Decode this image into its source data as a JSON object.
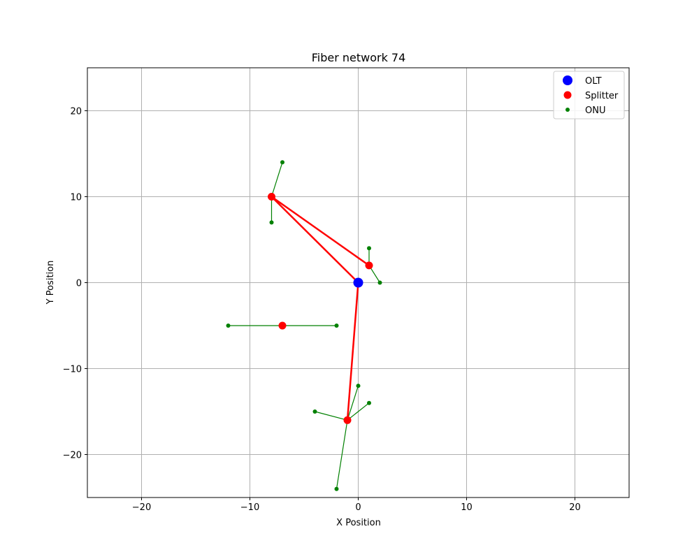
{
  "chart_data": {
    "type": "scatter",
    "title": "Fiber network 74",
    "xlabel": "X Position",
    "ylabel": "Y Position",
    "xlim": [
      -25,
      25
    ],
    "ylim": [
      -25,
      25
    ],
    "xticks": [
      -20,
      -10,
      0,
      10,
      20
    ],
    "yticks": [
      -20,
      -10,
      0,
      10,
      20
    ],
    "grid": true,
    "legend_position": "top-right",
    "series": [
      {
        "name": "OLT",
        "color": "#0000ff",
        "points": [
          [
            0,
            0
          ]
        ]
      },
      {
        "name": "Splitter",
        "color": "#ff0000",
        "points": [
          [
            -8,
            10
          ],
          [
            1,
            2
          ],
          [
            -7,
            -5
          ],
          [
            -1,
            -16
          ]
        ]
      },
      {
        "name": "ONU",
        "color": "#008000",
        "points": [
          [
            -7,
            14
          ],
          [
            -8,
            7
          ],
          [
            1,
            4
          ],
          [
            2,
            0
          ],
          [
            -12,
            -5
          ],
          [
            -2,
            -5
          ],
          [
            0,
            -12
          ],
          [
            1,
            -14
          ],
          [
            -4,
            -15
          ],
          [
            -2,
            -24
          ]
        ]
      }
    ],
    "feeder_links": {
      "color": "#ff0000",
      "segments": [
        [
          [
            0,
            0
          ],
          [
            -8,
            10
          ]
        ],
        [
          [
            0,
            0
          ],
          [
            -1,
            -16
          ]
        ],
        [
          [
            -8,
            10
          ],
          [
            1,
            2
          ]
        ]
      ]
    },
    "drop_links": {
      "color": "#008000",
      "segments": [
        [
          [
            -8,
            10
          ],
          [
            -7,
            14
          ]
        ],
        [
          [
            -8,
            10
          ],
          [
            -8,
            7
          ]
        ],
        [
          [
            1,
            2
          ],
          [
            1,
            4
          ]
        ],
        [
          [
            1,
            2
          ],
          [
            2,
            0
          ]
        ],
        [
          [
            -7,
            -5
          ],
          [
            -12,
            -5
          ]
        ],
        [
          [
            -7,
            -5
          ],
          [
            -2,
            -5
          ]
        ],
        [
          [
            -1,
            -16
          ],
          [
            0,
            -12
          ]
        ],
        [
          [
            -1,
            -16
          ],
          [
            1,
            -14
          ]
        ],
        [
          [
            -1,
            -16
          ],
          [
            -4,
            -15
          ]
        ],
        [
          [
            -1,
            -16
          ],
          [
            -2,
            -24
          ]
        ]
      ]
    }
  }
}
